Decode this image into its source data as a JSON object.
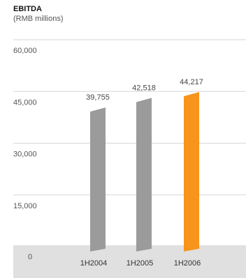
{
  "chart_data": {
    "type": "bar",
    "title": "EBITDA",
    "subtitle": "(RMB millions)",
    "categories": [
      "1H2004",
      "1H2005",
      "1H2006"
    ],
    "values": [
      39755,
      42518,
      44217
    ],
    "value_labels": [
      "39,755",
      "42,518",
      "44,217"
    ],
    "bar_colors": [
      "#9b9b9b",
      "#9b9b9b",
      "#f7941d"
    ],
    "ylim": [
      0,
      60000
    ],
    "yticks": [
      0,
      15000,
      30000,
      45000,
      60000
    ],
    "ytick_labels": [
      "0",
      "15,000",
      "30,000",
      "45,000",
      "60,000"
    ],
    "grid": true,
    "legend": "none"
  },
  "colors": {
    "gridline": "#d5d5d5",
    "baseline_band": "#e0e0e0"
  }
}
